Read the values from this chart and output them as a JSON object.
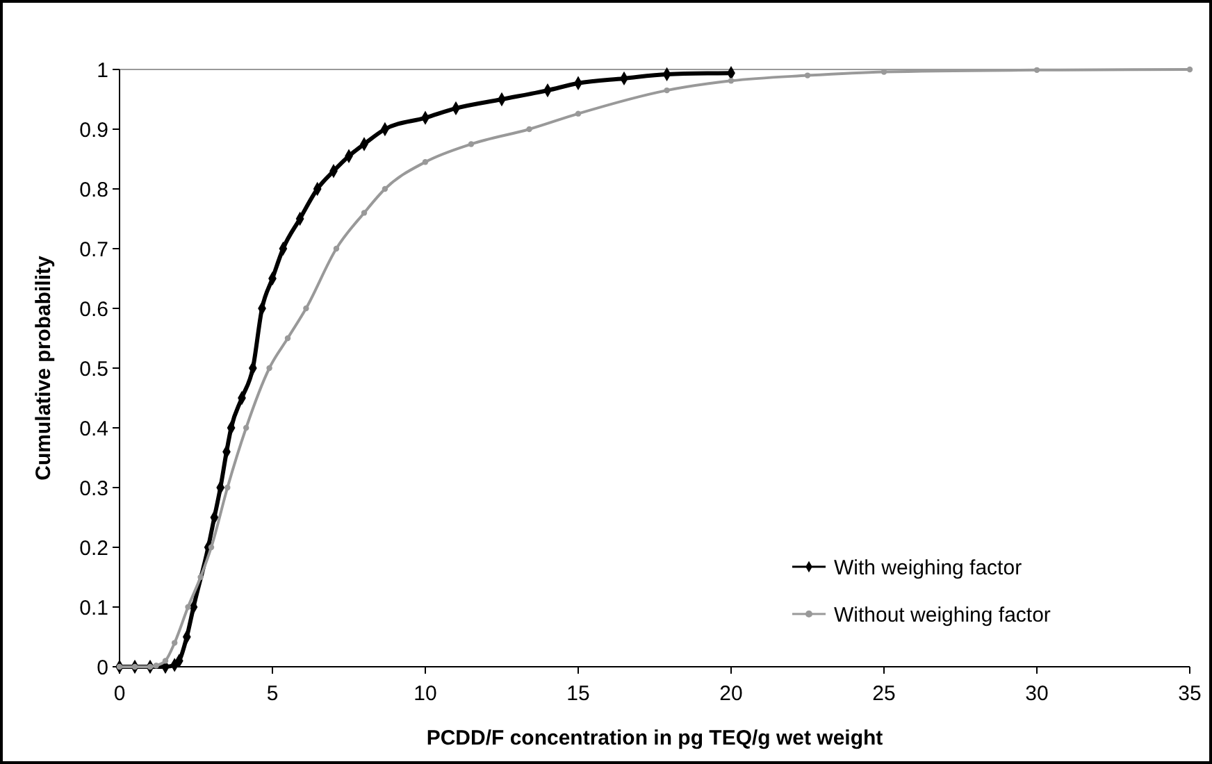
{
  "chart_data": {
    "type": "line",
    "xlabel": "PCDD/F concentration in pg TEQ/g wet weight",
    "ylabel": "Cumulative probability",
    "xlim": [
      0,
      35
    ],
    "xticks": [
      0,
      5,
      10,
      15,
      20,
      25,
      30,
      35
    ],
    "ylim": [
      0,
      1
    ],
    "yticks": [
      0,
      0.1,
      0.2,
      0.3,
      0.4,
      0.5,
      0.6,
      0.7,
      0.8,
      0.9,
      1
    ],
    "grid": false,
    "legend": "bottom right",
    "series": [
      {
        "name": "With weighing factor",
        "color": "#000000",
        "marker": "diamond",
        "x": [
          0,
          0.5,
          1,
          1.5,
          1.8,
          1.95,
          2.2,
          2.42,
          2.9,
          3.1,
          3.3,
          3.5,
          3.65,
          4,
          4.36,
          4.66,
          5,
          5.35,
          5.9,
          6.47,
          7,
          7.5,
          8,
          8.68,
          10,
          11,
          12.5,
          14,
          15,
          16.5,
          17.9,
          20
        ],
        "values": [
          0,
          0,
          0,
          0,
          0.003,
          0.01,
          0.05,
          0.1,
          0.2,
          0.25,
          0.3,
          0.36,
          0.4,
          0.45,
          0.5,
          0.6,
          0.65,
          0.7,
          0.75,
          0.8,
          0.83,
          0.855,
          0.875,
          0.9,
          0.919,
          0.935,
          0.95,
          0.965,
          0.977,
          0.985,
          0.992,
          0.994
        ]
      },
      {
        "name": "Without weighing factor",
        "color": "#999999",
        "marker": "circle",
        "x": [
          0,
          0.5,
          1,
          1.2,
          1.5,
          1.8,
          2.24,
          2.65,
          3,
          3.53,
          4.14,
          4.9,
          5.5,
          6.1,
          7.09,
          8,
          8.68,
          10,
          11.5,
          13.4,
          15,
          17.9,
          20,
          22.5,
          25,
          30,
          35
        ],
        "values": [
          0,
          0,
          0,
          0.002,
          0.01,
          0.04,
          0.1,
          0.15,
          0.2,
          0.3,
          0.4,
          0.5,
          0.55,
          0.6,
          0.7,
          0.76,
          0.8,
          0.845,
          0.875,
          0.9,
          0.926,
          0.965,
          0.981,
          0.99,
          0.996,
          0.999,
          1
        ]
      }
    ]
  }
}
